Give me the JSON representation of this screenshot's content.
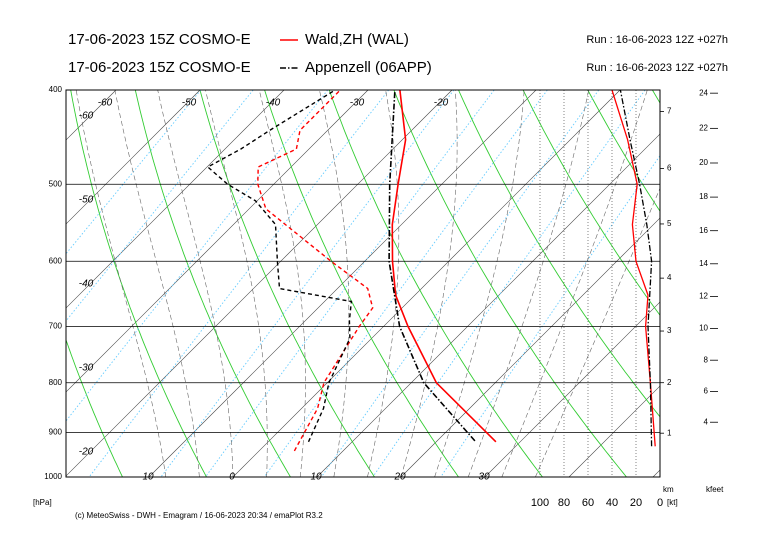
{
  "chart_data": {
    "type": "emagram",
    "ylabel": "[hPa]",
    "ylim": [
      1000,
      400
    ],
    "yticks": [
      400,
      500,
      600,
      700,
      800,
      900,
      1000
    ],
    "bottom_ticks": [
      {
        "value": -10,
        "label": "10"
      },
      0,
      10,
      20,
      30
    ],
    "top_ticks": [
      -60,
      -50,
      -40,
      -30,
      -20
    ],
    "left_ticks": [
      -60,
      -50,
      -40,
      -30,
      -20
    ],
    "km_label": "km",
    "km_ticks": [
      1,
      2,
      3,
      4,
      5,
      6,
      7
    ],
    "kfeet_label": "kfeet",
    "kfeet_ticks": [
      4,
      6,
      8,
      10,
      12,
      14,
      16,
      18,
      20,
      22,
      24
    ],
    "wind_label": "[kt]",
    "wind_ticks": [
      100,
      80,
      60,
      40,
      20,
      0
    ],
    "footer": "(c) MeteoSwiss - DWH - Emagram / 16-06-2023  20:34 / emaPlot R3.2",
    "series": [
      {
        "name": "Wald,ZH (WAL)",
        "valid": "17-06-2023 15Z COSMO-E",
        "run": "Run : 16-06-2023 12Z +027h",
        "color": "#ff0000",
        "linestyle": "solid",
        "pressure": [
          920,
          800,
          700,
          650,
          600,
          550,
          500,
          450,
          400
        ],
        "temperature": [
          27.1,
          13.0,
          2.9,
          -2.3,
          -6.7,
          -11.1,
          -15.2,
          -19.6,
          -26.2
        ],
        "dew_pressure": [
          940,
          850,
          800,
          700,
          670,
          640,
          600,
          560,
          530,
          500,
          480,
          460,
          440,
          400
        ],
        "dewpoint": [
          4.2,
          1.9,
          -0.4,
          -2.9,
          -3.5,
          -6.4,
          -14.0,
          -21.8,
          -28.0,
          -31.9,
          -33.9,
          -31.5,
          -33.3,
          -33.3
        ],
        "wind_pressure": [
          930,
          800,
          700,
          650,
          600,
          550,
          500,
          450,
          400
        ],
        "wind_speed": [
          4,
          8,
          12,
          10,
          20,
          23,
          19,
          27,
          40
        ]
      },
      {
        "name": "Appenzell (06APP)",
        "valid": "17-06-2023 15Z COSMO-E",
        "run": "Run : 16-06-2023 12Z +027h",
        "color": "#000000",
        "linestyle": "dashdot",
        "pressure": [
          918,
          800,
          700,
          600,
          500,
          400
        ],
        "temperature": [
          24.5,
          11.5,
          1.9,
          -7.1,
          -16.2,
          -26.8
        ],
        "dew_pressure": [
          920,
          850,
          800,
          720,
          690,
          660,
          640,
          600,
          550,
          520,
          500,
          480,
          460,
          440,
          400
        ],
        "dewpoint": [
          4.8,
          2.6,
          0.2,
          -2.6,
          -4.8,
          -6.8,
          -16.9,
          -20.4,
          -25.0,
          -30.2,
          -35.5,
          -39.9,
          -38.1,
          -36.9,
          -33.9
        ],
        "wind_pressure": [
          930,
          800,
          700,
          600,
          550,
          500,
          450,
          400
        ],
        "wind_speed": [
          7,
          8,
          10,
          7,
          11,
          17,
          25,
          33
        ]
      }
    ]
  }
}
